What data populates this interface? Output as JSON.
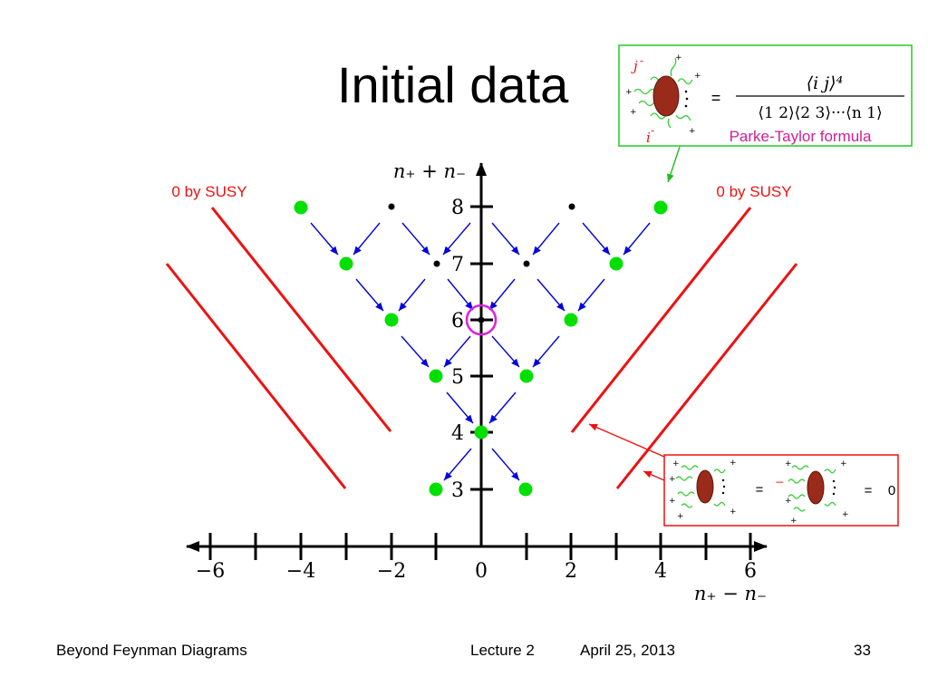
{
  "slide": {
    "title": "Initial data"
  },
  "axes": {
    "x_label": "n₊ − n₋",
    "y_label": "n₊ + n₋",
    "x_ticks": [
      "−6",
      "−4",
      "−2",
      "0",
      "2",
      "4",
      "6"
    ],
    "y_ticks": [
      "3",
      "4",
      "5",
      "6",
      "7",
      "8"
    ]
  },
  "annotations": {
    "susy_left": "0 by SUSY",
    "susy_right": "0 by SUSY"
  },
  "parke_taylor_box": {
    "label_j": "j",
    "label_i": "i",
    "minus": "-",
    "plus": "+",
    "equals": "=",
    "formula_numerator": "⟨i j⟩⁴",
    "formula_denominator": "⟨1 2⟩⟨2 3⟩···⟨n 1⟩",
    "caption": "Parke-Taylor formula"
  },
  "susy_box": {
    "equals_1": "=",
    "equals_2": "=",
    "minus": "−",
    "plus": "+",
    "result": "0"
  },
  "colors": {
    "green_dot": "#00e000",
    "red_line": "#ee1111",
    "blue_arrow": "#0000dd",
    "magenta_circle": "#dd22dd",
    "blob": "#9a2a1a",
    "gluon": "#33cc33",
    "caption": "#cc2299"
  },
  "footer": {
    "left": "Beyond Feynman Diagrams",
    "center_lecture": "Lecture 2",
    "center_date": "April 25, 2013",
    "page": "33"
  }
}
